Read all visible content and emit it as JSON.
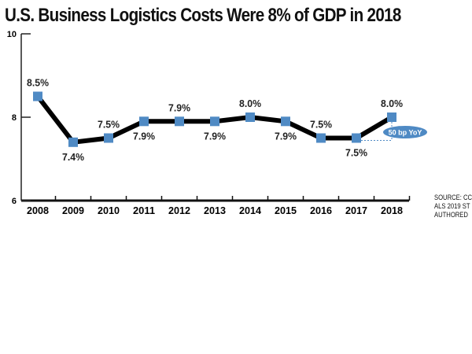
{
  "chart_data": {
    "type": "line",
    "title": "U.S. Business Logistics Costs Were 8% of GDP in 2018",
    "categories": [
      "2008",
      "2009",
      "2010",
      "2011",
      "2012",
      "2013",
      "2014",
      "2015",
      "2016",
      "2017",
      "2018"
    ],
    "values": [
      8.5,
      7.4,
      7.5,
      7.9,
      7.9,
      7.9,
      8.0,
      7.9,
      7.5,
      7.5,
      8.0
    ],
    "data_labels": [
      "8.5%",
      "7.4%",
      "7.5%",
      "7.9%",
      "7.9%",
      "7.9%",
      "8.0%",
      "7.9%",
      "7.5%",
      "7.5%",
      "8.0%"
    ],
    "label_position": [
      "above",
      "below",
      "above",
      "below",
      "above",
      "below",
      "above",
      "below",
      "above",
      "below",
      "above"
    ],
    "ylim": [
      6,
      10
    ],
    "yticks": [
      "6",
      "8",
      "10"
    ],
    "xlabel": "",
    "ylabel": "",
    "grid": false,
    "annotation": "50 bp YoY",
    "line_color": "#000000",
    "marker_color": "#4f8ac4",
    "annotation_color": "#4f8ac4"
  },
  "source_lines": [
    "SOURCE: CC",
    "ALS 2019 ST",
    "AUTHORED"
  ]
}
